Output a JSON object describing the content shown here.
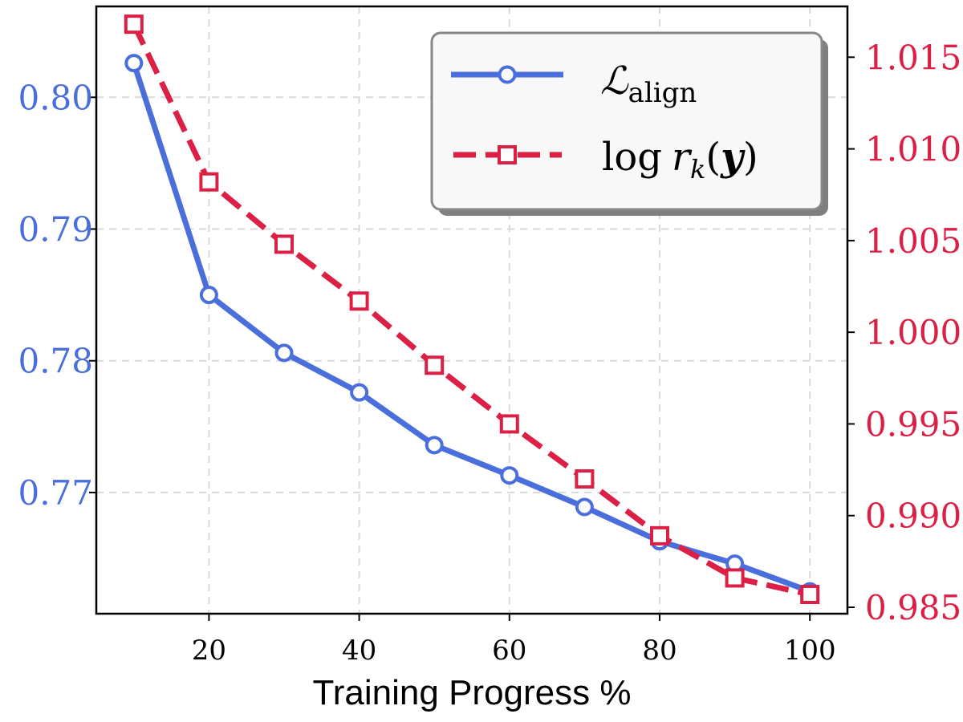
{
  "chart_data": {
    "type": "line",
    "x": [
      10,
      20,
      30,
      40,
      50,
      60,
      70,
      80,
      90,
      100
    ],
    "xlabel": "Training Progress %",
    "xlim": [
      5,
      105
    ],
    "xticks": [
      20,
      40,
      60,
      80,
      100
    ],
    "xtick_labels": [
      "20",
      "40",
      "60",
      "80",
      "100"
    ],
    "grid": true,
    "legend_position": "top-right",
    "series": [
      {
        "name": "L_align",
        "legend_main": "ℒ",
        "legend_sub": "align",
        "axis": "left",
        "color": "#4a6fdc",
        "marker": "circle",
        "line_style": "solid",
        "values": [
          0.8026,
          0.785,
          0.7806,
          0.7776,
          0.7736,
          0.7713,
          0.7689,
          0.7663,
          0.7646,
          0.7625
        ]
      },
      {
        "name": "log r_k(y)",
        "legend_log": "log",
        "legend_r": "r",
        "legend_k": "k",
        "legend_open": "(",
        "legend_y": "y",
        "legend_close": ")",
        "axis": "right",
        "color": "#dc1f45",
        "marker": "square",
        "line_style": "dashed",
        "values": [
          1.0168,
          1.0082,
          1.0048,
          1.0017,
          0.9982,
          0.995,
          0.992,
          0.9889,
          0.9866,
          0.9857
        ]
      }
    ],
    "y_left": {
      "ylim": [
        0.7608,
        0.8069
      ],
      "ticks": [
        0.77,
        0.78,
        0.79,
        0.8
      ],
      "tick_labels": [
        "0.77",
        "0.78",
        "0.79",
        "0.80"
      ],
      "color": "#4a6fdc"
    },
    "y_right": {
      "ylim": [
        0.98465,
        1.01777
      ],
      "ticks": [
        0.985,
        0.99,
        0.995,
        1.0,
        1.005,
        1.01,
        1.015
      ],
      "tick_labels": [
        "0.985",
        "0.990",
        "0.995",
        "1.000",
        "1.005",
        "1.010",
        "1.015"
      ],
      "color": "#dc1f45"
    }
  }
}
